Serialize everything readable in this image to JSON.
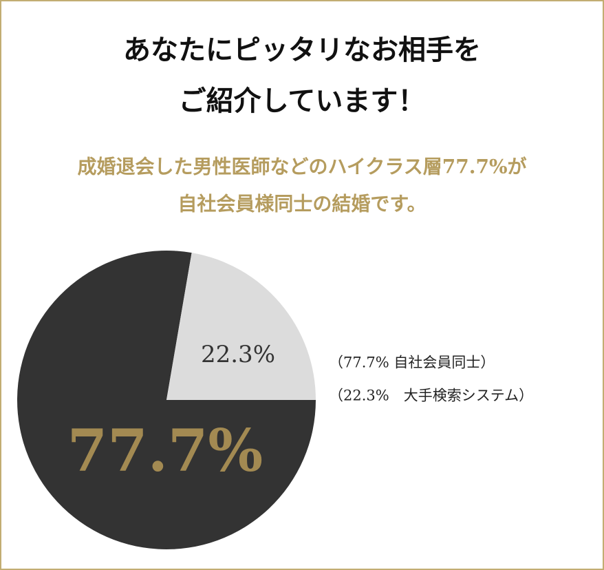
{
  "chart_data": {
    "type": "pie",
    "title": [
      "あなたにピッタリなお相手を",
      "ご紹介しています！"
    ],
    "subtitle": [
      "成婚退会した男性医師などのハイクラス層77.7%が",
      "自社会員様同士の結婚です。"
    ],
    "categories": [
      "（77.7% 自社会員同士）",
      "（22.3%　大手検索システム）"
    ],
    "values": [
      77.7,
      22.3
    ],
    "value_labels": [
      "77.7%",
      "22.3%"
    ],
    "colors": [
      "#333333",
      "#dcdcdc"
    ],
    "label_colors": [
      "#a38a52",
      "#333333"
    ]
  }
}
